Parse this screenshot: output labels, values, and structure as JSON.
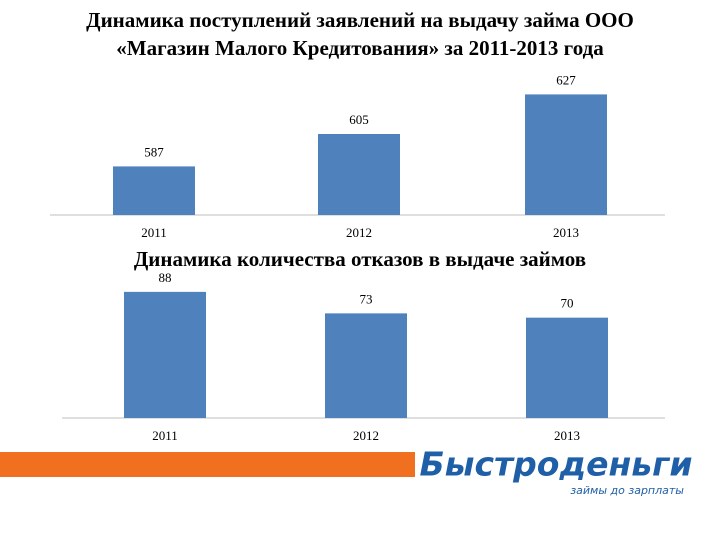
{
  "chart_data": [
    {
      "type": "bar",
      "title": "Динамика поступлений заявлений на выдачу займа ООО «Магазин Малого Кредитования» за 2011-2013 года",
      "categories": [
        "2011",
        "2012",
        "2013"
      ],
      "values": [
        587,
        605,
        627
      ],
      "color": "#4f81bd",
      "ylim": [
        560,
        630
      ]
    },
    {
      "type": "bar",
      "title": "Динамика количества отказов в выдаче займов",
      "categories": [
        "2011",
        "2012",
        "2013"
      ],
      "values": [
        88,
        73,
        70
      ],
      "color": "#4f81bd",
      "ylim": [
        0,
        90
      ]
    }
  ],
  "logo": {
    "name": "Быстроденьги",
    "tagline": "займы до зарплаты"
  }
}
